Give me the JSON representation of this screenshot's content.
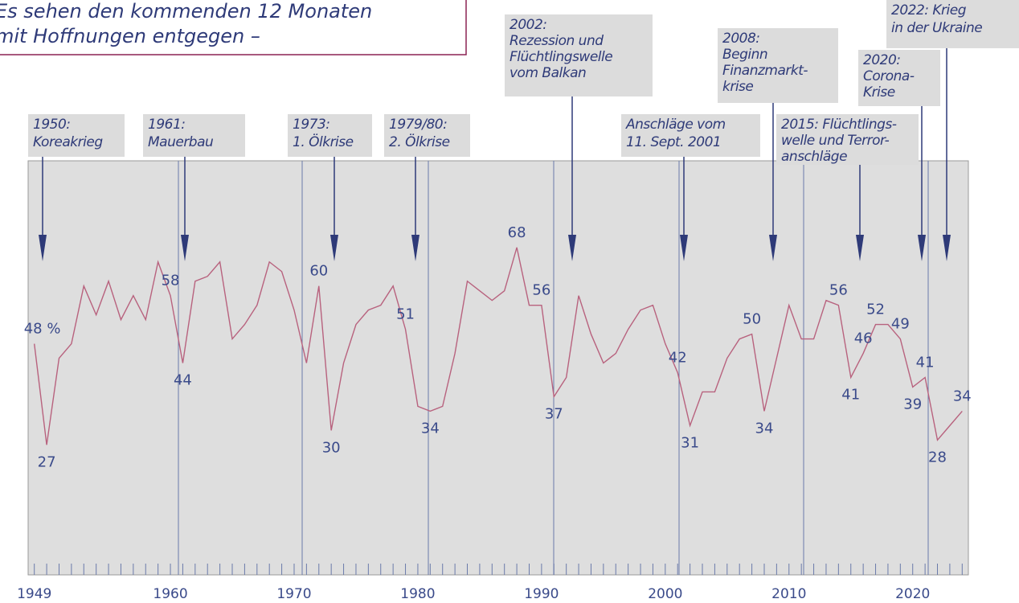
{
  "chart_data": {
    "type": "line",
    "title": [
      "Es sehen den kommenden 12 Monaten",
      "mit Hoffnungen entgegen –"
    ],
    "x": [
      1949,
      1950,
      1951,
      1952,
      1953,
      1954,
      1955,
      1956,
      1957,
      1958,
      1959,
      1960,
      1961,
      1962,
      1963,
      1964,
      1965,
      1966,
      1967,
      1968,
      1969,
      1970,
      1971,
      1972,
      1973,
      1974,
      1975,
      1976,
      1977,
      1978,
      1979,
      1980,
      1981,
      1982,
      1983,
      1984,
      1985,
      1986,
      1987,
      1988,
      1989,
      1990,
      1991,
      1992,
      1993,
      1994,
      1995,
      1996,
      1997,
      1998,
      1999,
      2000,
      2001,
      2002,
      2003,
      2004,
      2005,
      2006,
      2007,
      2008,
      2009,
      2010,
      2011,
      2012,
      2013,
      2014,
      2015,
      2016,
      2017,
      2018,
      2019,
      2020,
      2021,
      2022,
      2023,
      2024
    ],
    "values": [
      48,
      27,
      45,
      48,
      60,
      54,
      61,
      53,
      58,
      53,
      65,
      58,
      44,
      61,
      62,
      65,
      49,
      52,
      56,
      65,
      63,
      55,
      44,
      60,
      30,
      44,
      52,
      55,
      56,
      60,
      51,
      35,
      34,
      35,
      46,
      61,
      59,
      57,
      59,
      68,
      56,
      56,
      37,
      41,
      58,
      50,
      44,
      46,
      51,
      55,
      56,
      48,
      42,
      31,
      38,
      38,
      45,
      49,
      50,
      34,
      45,
      56,
      49,
      49,
      57,
      56,
      41,
      46,
      52,
      52,
      49,
      39,
      41,
      28,
      31,
      34
    ],
    "value_labels": [
      "48 %",
      "27",
      null,
      null,
      null,
      null,
      null,
      null,
      null,
      null,
      null,
      "58",
      "44",
      null,
      null,
      null,
      null,
      null,
      null,
      null,
      null,
      null,
      null,
      "60",
      "30",
      null,
      null,
      null,
      null,
      null,
      "51",
      null,
      "34",
      null,
      null,
      null,
      null,
      null,
      null,
      "68",
      null,
      "56",
      "37",
      null,
      null,
      null,
      null,
      null,
      null,
      null,
      null,
      null,
      "42",
      "31",
      null,
      null,
      null,
      null,
      "50",
      "34",
      null,
      null,
      null,
      null,
      null,
      "56",
      "41",
      "46",
      "52",
      null,
      "49",
      "39",
      "41",
      "28",
      null,
      "34"
    ],
    "color": "#b8627e",
    "xlim": [
      1948.5,
      2024.5
    ],
    "xticks": [
      1949,
      1960,
      1970,
      1980,
      1990,
      2000,
      2010,
      2020
    ],
    "ylim": [
      0,
      86
    ],
    "annotations": [
      [
        "1950:",
        "Koreakrieg"
      ],
      [
        "1961:",
        "Mauerbau"
      ],
      [
        "1973:",
        "1. Ölkrise"
      ],
      [
        "1979/80:",
        "2. Ölkrise"
      ],
      [
        "2002:",
        "Rezession und",
        "Flüchtlingswelle",
        "vom Balkan"
      ],
      [
        "Anschläge vom",
        "11. Sept. 2001"
      ],
      [
        "2008:",
        "Beginn",
        "Finanzmarkt-",
        "krise"
      ],
      [
        "2015: Flüchtlings-",
        "welle und Terror-",
        "anschläge"
      ],
      [
        "2020:",
        "Corona-",
        "Krise"
      ],
      [
        "2022: Krieg",
        "in der Ukraine"
      ]
    ]
  }
}
